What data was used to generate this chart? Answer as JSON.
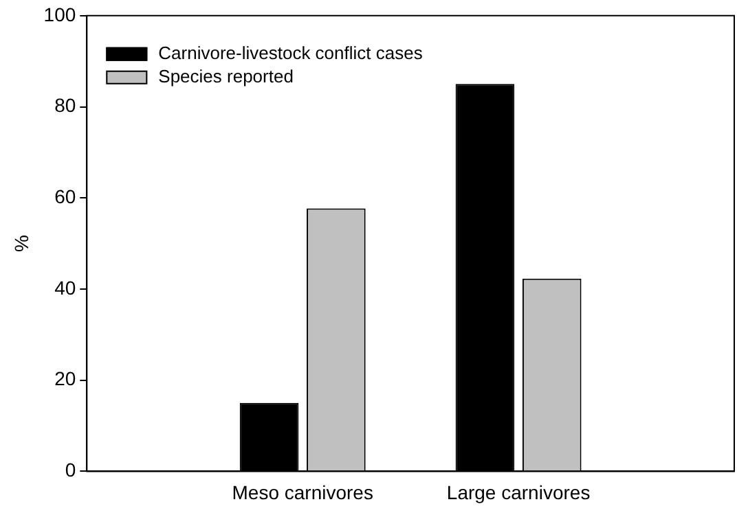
{
  "chart_data": {
    "type": "bar",
    "ylabel": "%",
    "categories": [
      "Meso carnivores",
      "Large carnivores"
    ],
    "series": [
      {
        "name": "Carnivore-livestock conflict cases",
        "color": "#000000",
        "values": [
          15,
          85
        ]
      },
      {
        "name": "Species reported",
        "color": "#c0c0c0",
        "values": [
          57.7,
          42.3
        ]
      }
    ],
    "ylim": [
      0,
      100
    ],
    "yticks": [
      0,
      20,
      40,
      60,
      80,
      100
    ],
    "grid": false,
    "legend": "top left"
  }
}
